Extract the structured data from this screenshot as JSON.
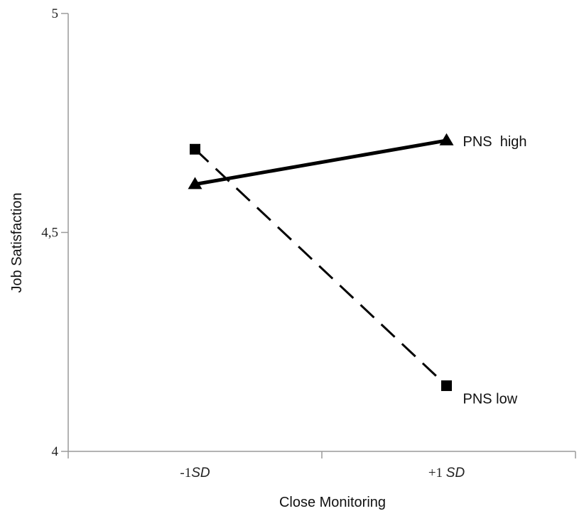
{
  "chart_data": {
    "type": "line",
    "title": "",
    "xlabel": "Close Monitoring",
    "ylabel": "Job Satisfaction",
    "categories": [
      {
        "prefix": "-1",
        "italic": "SD"
      },
      {
        "prefix": "+1 ",
        "italic": "SD"
      }
    ],
    "ylim": [
      4,
      5
    ],
    "yticks": [
      "4",
      "4,5",
      "5"
    ],
    "ytick_values": [
      4,
      4.5,
      5
    ],
    "grid": false,
    "series": [
      {
        "name": "PNS  high",
        "values": [
          4.61,
          4.71
        ],
        "marker": "triangle",
        "line_style": "solid",
        "color": "#000000"
      },
      {
        "name": "PNS low",
        "values": [
          4.69,
          4.15
        ],
        "marker": "square",
        "line_style": "dashed",
        "color": "#000000"
      }
    ],
    "axis_color": "#9a9a9a"
  }
}
